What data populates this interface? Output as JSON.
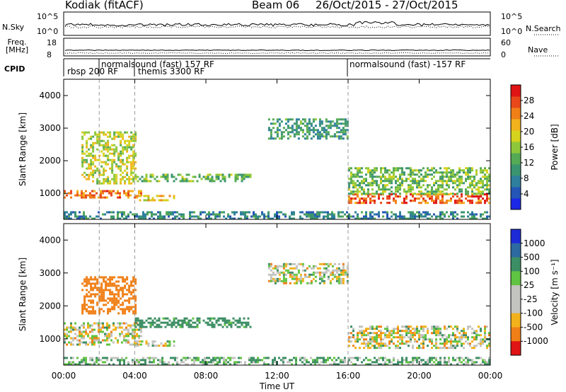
{
  "header": {
    "station": "Kodiak  (fitACF)",
    "beam": "Beam 06",
    "date_range": "26/Oct/2015 - 27/Oct/2015"
  },
  "strip_labels": {
    "nsky": "N.Sky",
    "nsky_top": "10^5",
    "nsky_bottom": "10^0",
    "nsearch": "N.Search",
    "freq": "Freq.\n[MHz]",
    "freq_top": "18",
    "freq_bottom": "8",
    "nave": "Nave",
    "nave_top": "60",
    "nave_bottom": "0",
    "cpid": "CPID"
  },
  "modes": [
    {
      "label": "rbsp  200 RF"
    },
    {
      "label": "normalsound (fast) 157 RF"
    },
    {
      "label": "themis 3300 RF"
    },
    {
      "label": "normalsound (fast) -157 RF"
    }
  ],
  "colors": {
    "power_scale": [
      "#1c28e6",
      "#2456b6",
      "#2e7f9c",
      "#3a9470",
      "#55aa55",
      "#8ec83a",
      "#d6d21e",
      "#f2b21c",
      "#f07f17",
      "#e8481a",
      "#e01414"
    ],
    "velocity_scale": [
      "#1c2bd6",
      "#2d6aa0",
      "#3c8e64",
      "#60c442",
      "#c3c3bf",
      "#c3c3bf",
      "#f2b21c",
      "#f07f17",
      "#e01414"
    ]
  },
  "chart_data": [
    {
      "type": "heatmap",
      "name": "power",
      "ylabel": "Slant Range [km]",
      "xlabel": "Time UT",
      "ylim": [
        200,
        4500
      ],
      "yticks": [
        "1000",
        "2000",
        "3000",
        "4000"
      ],
      "xticks": [
        "00:00",
        "04:00",
        "08:00",
        "12:00",
        "16:00",
        "20:00",
        "00:00"
      ],
      "colorbar_label": "Power [dB]",
      "colorbar_ticks": [
        "4",
        "8",
        "12",
        "16",
        "20",
        "24",
        "28"
      ],
      "colorbar_range": [
        0,
        32
      ],
      "mode_change_times_hours": [
        2.0,
        4.0,
        16.0
      ],
      "echo_regions": [
        {
          "t_start": 0.0,
          "t_end": 4.3,
          "range_km": [
            850,
            1100
          ],
          "power_db": 26
        },
        {
          "t_start": 1.0,
          "t_end": 4.0,
          "range_km": [
            1300,
            2900
          ],
          "power_db": 18
        },
        {
          "t_start": 4.0,
          "t_end": 10.5,
          "range_km": [
            1350,
            1600
          ],
          "power_db": 14
        },
        {
          "t_start": 4.0,
          "t_end": 6.2,
          "range_km": [
            800,
            950
          ],
          "power_db": 22
        },
        {
          "t_start": 11.5,
          "t_end": 16.0,
          "range_km": [
            2700,
            3300
          ],
          "power_db": 10
        },
        {
          "t_start": 16.0,
          "t_end": 24.0,
          "range_km": [
            700,
            1000
          ],
          "power_db": 28
        },
        {
          "t_start": 16.0,
          "t_end": 24.0,
          "range_km": [
            1000,
            1800
          ],
          "power_db": 14
        },
        {
          "t_start": 0.0,
          "t_end": 24.0,
          "range_km": [
            250,
            450
          ],
          "power_db": 8
        }
      ]
    },
    {
      "type": "heatmap",
      "name": "velocity",
      "ylabel": "Slant Range [km]",
      "xlabel": "Time UT",
      "ylim": [
        200,
        4500
      ],
      "yticks": [
        "1000",
        "2000",
        "3000",
        "4000"
      ],
      "xticks": [
        "00:00",
        "04:00",
        "08:00",
        "12:00",
        "16:00",
        "20:00",
        "00:00"
      ],
      "colorbar_label": "Velocity [m s⁻¹]",
      "colorbar_ticks": [
        "1000",
        "500",
        "100",
        "25",
        "-25",
        "-100",
        "-500",
        "-1000"
      ],
      "mode_change_times_hours": [
        2.0,
        4.0,
        16.0
      ],
      "echo_regions": [
        {
          "t_start": 0.0,
          "t_end": 4.3,
          "range_km": [
            850,
            1500
          ],
          "velocity": 0
        },
        {
          "t_start": 1.0,
          "t_end": 4.0,
          "range_km": [
            1800,
            2900
          ],
          "velocity": -200
        },
        {
          "t_start": 4.0,
          "t_end": 10.5,
          "range_km": [
            1350,
            1650
          ],
          "velocity": 120
        },
        {
          "t_start": 4.0,
          "t_end": 6.2,
          "range_km": [
            800,
            950
          ],
          "velocity": 0
        },
        {
          "t_start": 11.5,
          "t_end": 16.0,
          "range_km": [
            2700,
            3300
          ],
          "velocity": 0
        },
        {
          "t_start": 16.0,
          "t_end": 24.0,
          "range_km": [
            700,
            1400
          ],
          "velocity": 0
        },
        {
          "t_start": 0.0,
          "t_end": 24.0,
          "range_km": [
            250,
            450
          ],
          "velocity": 60
        }
      ]
    }
  ]
}
